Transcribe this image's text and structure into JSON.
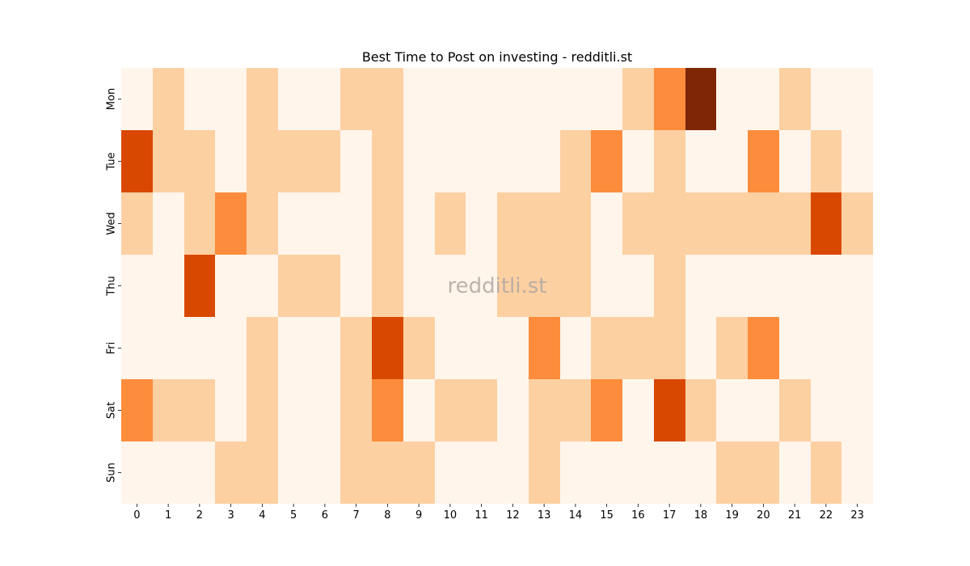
{
  "chart_data": {
    "type": "heatmap",
    "title": "Best Time to Post on investing - redditli.st",
    "watermark": "redditli.st",
    "x": [
      "0",
      "1",
      "2",
      "3",
      "4",
      "5",
      "6",
      "7",
      "8",
      "9",
      "10",
      "11",
      "12",
      "13",
      "14",
      "15",
      "16",
      "17",
      "18",
      "19",
      "20",
      "21",
      "22",
      "23"
    ],
    "y": [
      "Mon",
      "Tue",
      "Wed",
      "Thu",
      "Fri",
      "Sat",
      "Sun"
    ],
    "xlabel": "",
    "ylabel": "",
    "colormap": "Oranges",
    "value_range": [
      0,
      4
    ],
    "values": [
      [
        0,
        1,
        0,
        0,
        1,
        0,
        0,
        1,
        1,
        0,
        0,
        0,
        0,
        0,
        0,
        0,
        1,
        2,
        4,
        0,
        0,
        1,
        0,
        0
      ],
      [
        3,
        1,
        1,
        0,
        1,
        1,
        1,
        0,
        1,
        0,
        0,
        0,
        0,
        0,
        1,
        2,
        0,
        1,
        0,
        0,
        2,
        0,
        1,
        0
      ],
      [
        1,
        0,
        1,
        2,
        1,
        0,
        0,
        0,
        1,
        0,
        1,
        0,
        1,
        1,
        1,
        0,
        1,
        1,
        1,
        1,
        1,
        1,
        3,
        1
      ],
      [
        0,
        0,
        3,
        0,
        0,
        1,
        1,
        0,
        1,
        0,
        0,
        0,
        1,
        1,
        1,
        0,
        0,
        1,
        0,
        0,
        0,
        0,
        0,
        0
      ],
      [
        0,
        0,
        0,
        0,
        1,
        0,
        0,
        1,
        3,
        1,
        0,
        0,
        0,
        2,
        0,
        1,
        1,
        1,
        0,
        1,
        2,
        0,
        0,
        0
      ],
      [
        2,
        1,
        1,
        0,
        1,
        0,
        0,
        1,
        2,
        0,
        1,
        1,
        0,
        1,
        1,
        2,
        0,
        3,
        1,
        0,
        0,
        1,
        0,
        0
      ],
      [
        0,
        0,
        0,
        1,
        1,
        0,
        0,
        1,
        1,
        1,
        0,
        0,
        0,
        1,
        0,
        0,
        0,
        0,
        0,
        1,
        1,
        0,
        1,
        0
      ]
    ],
    "palette": [
      "#fff5eb",
      "#fdd0a2",
      "#fd8d3c",
      "#d94801",
      "#7f2704"
    ],
    "grid": false,
    "legend": "none"
  }
}
